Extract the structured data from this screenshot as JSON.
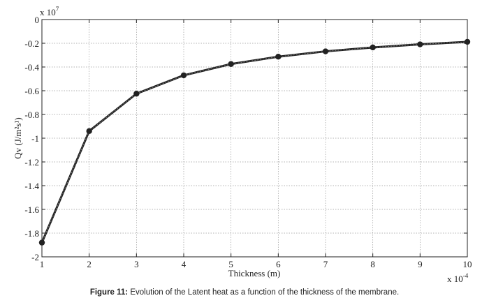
{
  "chart_data": {
    "type": "line",
    "x": [
      1,
      2,
      3,
      4,
      5,
      6,
      7,
      8,
      9,
      10
    ],
    "series": [
      {
        "values": [
          -1.88,
          -0.94,
          -0.625,
          -0.47,
          -0.375,
          -0.313,
          -0.268,
          -0.235,
          -0.209,
          -0.188
        ]
      }
    ],
    "xlim": [
      1,
      10
    ],
    "ylim": [
      -2,
      0
    ],
    "xticks": [
      "1",
      "2",
      "3",
      "4",
      "5",
      "6",
      "7",
      "8",
      "9",
      "10"
    ],
    "yticks": [
      "0",
      "-0.2",
      "-0.4",
      "-0.6",
      "-0.8",
      "-1",
      "-1.2",
      "-1.4",
      "-1.6",
      "-1.8",
      "-2"
    ],
    "xlabel": "Thickness (m)",
    "ylabel": "Qv (J/m²s¹)",
    "x_multiplier": "x 10",
    "x_multiplier_exp": "-4",
    "y_multiplier": "x 10",
    "y_multiplier_exp": "7",
    "grid": true,
    "line_color": "#222222",
    "marker": "circle"
  },
  "caption": {
    "label": "Figure 11:",
    "text": " Evolution of the Latent heat as a function of the thickness of the membrane."
  }
}
